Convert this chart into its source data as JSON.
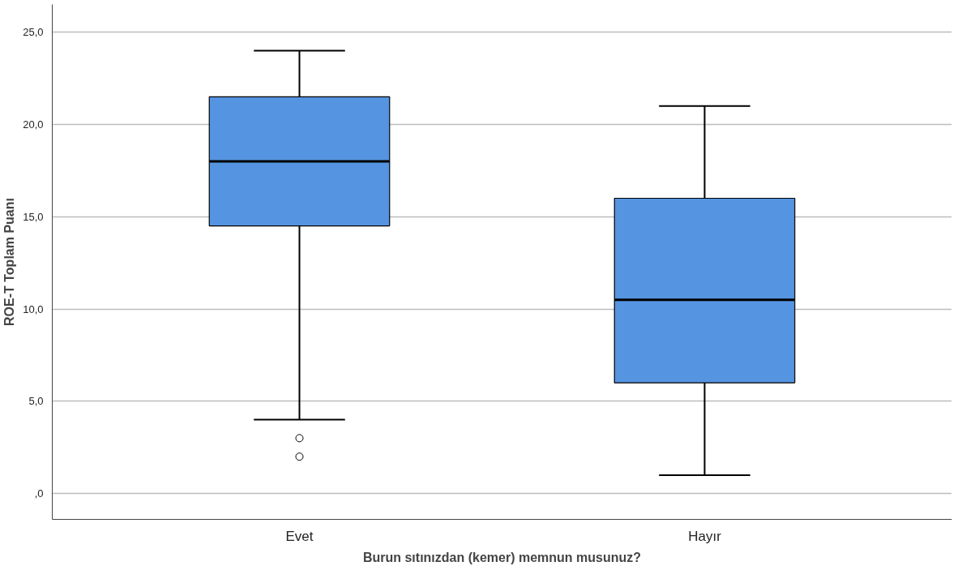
{
  "chart_data": {
    "type": "box",
    "xlabel": "Burun sıtınızdan (kemer) memnun musunuz?",
    "ylabel": "ROE-T Toplam Puanı",
    "categories": [
      "Evet",
      "Hayır"
    ],
    "boxes": [
      {
        "low": 4,
        "q1": 14.5,
        "median": 18,
        "q3": 21.5,
        "high": 24,
        "outliers": [
          3,
          2
        ]
      },
      {
        "low": 1,
        "q1": 6,
        "median": 10.5,
        "q3": 16,
        "high": 21
      }
    ],
    "color": "#5594e0",
    "ylim": [
      -1.4,
      26.5
    ],
    "yticks": [
      {
        "value": 0,
        "label": ",0"
      },
      {
        "value": 5,
        "label": "5,0"
      },
      {
        "value": 10,
        "label": "10,0"
      },
      {
        "value": 15,
        "label": "15,0"
      },
      {
        "value": 20,
        "label": "20,0"
      },
      {
        "value": 25,
        "label": "25,0"
      }
    ],
    "grid": "y"
  }
}
